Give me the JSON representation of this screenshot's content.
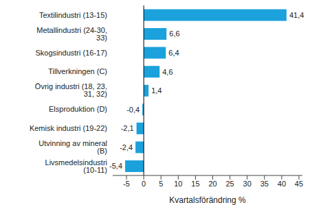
{
  "chart_data": {
    "type": "bar",
    "orientation": "horizontal",
    "categories": [
      "Textilindustri (13-15)",
      "Metallindustri (24-30, 33)",
      "Skogsindustri (16-17)",
      "Tillverkningen (C)",
      "Övrig industri (18, 23, 31, 32)",
      "Elsproduktion (D)",
      "Kemisk industri (19-22)",
      "Utvinning av mineral (B)",
      "Livsmedelsindustri (10-11)"
    ],
    "values": [
      41.4,
      6.6,
      6.4,
      4.6,
      1.4,
      -0.4,
      -2.1,
      -2.4,
      -5.4
    ],
    "value_labels": [
      "41,4",
      "6,6",
      "6,4",
      "4,6",
      "1,4",
      "-0,4",
      "-2,1",
      "-2,4",
      "-5,4"
    ],
    "data_labels": true,
    "color": "#1ba1db",
    "x_label": "Kvartalsförändring %",
    "xlim": [
      -9,
      46
    ],
    "xticks": [
      -5,
      0,
      5,
      10,
      15,
      20,
      25,
      30,
      35,
      40,
      45
    ],
    "grid": false
  }
}
